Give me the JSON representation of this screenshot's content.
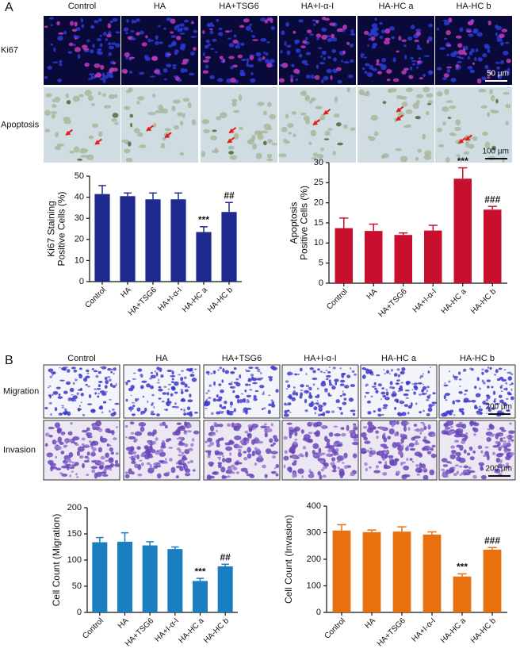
{
  "panels": [
    {
      "label": "A",
      "columns": [
        "Control",
        "HA",
        "HA+TSG6",
        "HA+I-α-I",
        "HA-HC a",
        "HA-HC b"
      ],
      "rows": [
        "Ki67",
        "Apoptosis"
      ],
      "scale_bars": [
        "50 µm",
        "100 µm"
      ]
    },
    {
      "label": "B",
      "columns": [
        "Control",
        "HA",
        "HA+TSG6",
        "HA+I-α-I",
        "HA-HC a",
        "HA-HC b"
      ],
      "rows": [
        "Migration",
        "Invasion"
      ],
      "scale_bars": [
        "200 µm",
        "200 µm"
      ]
    }
  ],
  "chart_data": [
    {
      "type": "bar",
      "ylabel": [
        "Ki67 Staining",
        "Positive Cells (%)"
      ],
      "categories": [
        "Control",
        "HA",
        "HA+TSG6",
        "HA+I-α-I",
        "HA-HC a",
        "HA-HC b"
      ],
      "values": [
        41.5,
        40.5,
        39,
        39,
        23.5,
        33
      ],
      "errors": [
        4,
        1.5,
        3,
        3,
        2.5,
        4.5
      ],
      "color": "#1f2a8f",
      "ylim": [
        0,
        50
      ],
      "yticks": [
        0,
        10,
        20,
        30,
        40,
        50
      ],
      "annotations": [
        {
          "index": 4,
          "text": "***"
        },
        {
          "index": 5,
          "text": "##"
        }
      ]
    },
    {
      "type": "bar",
      "ylabel": [
        "Apoptosis",
        "Positive Cells (%)"
      ],
      "categories": [
        "Control",
        "HA",
        "HA+TSG6",
        "HA+I-α-I",
        "HA-HC a",
        "HA-HC b"
      ],
      "values": [
        13.7,
        13,
        12,
        13.1,
        26,
        18.3
      ],
      "errors": [
        2.5,
        1.7,
        0.5,
        1.3,
        2.7,
        0.8
      ],
      "color": "#c8102e",
      "ylim": [
        0,
        30
      ],
      "yticks": [
        0,
        5,
        10,
        15,
        20,
        25,
        30
      ],
      "annotations": [
        {
          "index": 4,
          "text": "***"
        },
        {
          "index": 5,
          "text": "###"
        }
      ]
    },
    {
      "type": "bar",
      "ylabel": [
        "Cell Count (Migration)"
      ],
      "categories": [
        "Control",
        "HA",
        "HA+TSG6",
        "HA+I-α-I",
        "HA-HC a",
        "HA-HC b"
      ],
      "values": [
        134,
        135,
        128,
        121,
        60,
        88
      ],
      "errors": [
        9,
        17,
        7,
        4,
        5,
        4
      ],
      "color": "#1a7fc1",
      "ylim": [
        0,
        200
      ],
      "yticks": [
        0,
        50,
        100,
        150,
        200
      ],
      "annotations": [
        {
          "index": 4,
          "text": "***"
        },
        {
          "index": 5,
          "text": "##"
        }
      ]
    },
    {
      "type": "bar",
      "ylabel": [
        "Cell Count (Invasion)"
      ],
      "categories": [
        "Control",
        "HA",
        "HA+TSG6",
        "HA+I-α-I",
        "HA-HC a",
        "HA-HC b"
      ],
      "values": [
        308,
        302,
        304,
        293,
        135,
        236
      ],
      "errors": [
        22,
        8,
        18,
        10,
        10,
        8
      ],
      "color": "#e8700e",
      "ylim": [
        0,
        400
      ],
      "yticks": [
        0,
        100,
        200,
        300,
        400
      ],
      "annotations": [
        {
          "index": 4,
          "text": "***"
        },
        {
          "index": 5,
          "text": "###"
        }
      ]
    }
  ]
}
